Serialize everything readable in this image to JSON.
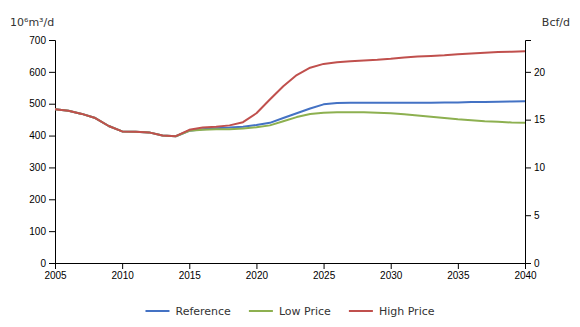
{
  "chart_data": {
    "type": "line",
    "ylabel": "10⁶m³/d",
    "y2label": "Bcf/d",
    "x": [
      2005,
      2006,
      2007,
      2008,
      2009,
      2010,
      2011,
      2012,
      2013,
      2014,
      2015,
      2016,
      2017,
      2018,
      2019,
      2020,
      2021,
      2022,
      2023,
      2024,
      2025,
      2026,
      2027,
      2028,
      2029,
      2030,
      2031,
      2032,
      2033,
      2034,
      2035,
      2036,
      2037,
      2038,
      2039,
      2040
    ],
    "series": [
      {
        "name": "Reference",
        "color": "#4472C4",
        "values": [
          483,
          478,
          468,
          455,
          430,
          413,
          412,
          410,
          400,
          398,
          415,
          420,
          423,
          425,
          428,
          433,
          440,
          455,
          470,
          485,
          498,
          502,
          503,
          503,
          503,
          503,
          503,
          503,
          503,
          504,
          504,
          505,
          505,
          506,
          507,
          508
        ]
      },
      {
        "name": "Low Price",
        "color": "#8DB050",
        "values": [
          483,
          478,
          468,
          455,
          430,
          413,
          412,
          410,
          400,
          398,
          415,
          418,
          420,
          420,
          422,
          426,
          432,
          445,
          458,
          468,
          472,
          473,
          473,
          473,
          472,
          470,
          467,
          463,
          459,
          455,
          451,
          448,
          445,
          443,
          441,
          440
        ]
      },
      {
        "name": "High Price",
        "color": "#C0504D",
        "values": [
          483,
          478,
          468,
          455,
          430,
          413,
          412,
          410,
          400,
          398,
          418,
          425,
          428,
          432,
          442,
          470,
          513,
          555,
          590,
          613,
          625,
          630,
          633,
          636,
          638,
          641,
          645,
          648,
          650,
          652,
          655,
          658,
          660,
          662,
          663,
          665
        ]
      }
    ],
    "xlim": [
      2005,
      2040
    ],
    "xticks": [
      2005,
      2010,
      2015,
      2020,
      2025,
      2030,
      2035,
      2040
    ],
    "ylim": [
      0,
      700
    ],
    "yticks": [
      0,
      100,
      200,
      300,
      400,
      500,
      600,
      700
    ],
    "y2lim": [
      0,
      23.333
    ],
    "y2ticks": [
      0,
      5,
      10,
      15,
      20
    ],
    "legend": "bottom",
    "grid": false
  }
}
